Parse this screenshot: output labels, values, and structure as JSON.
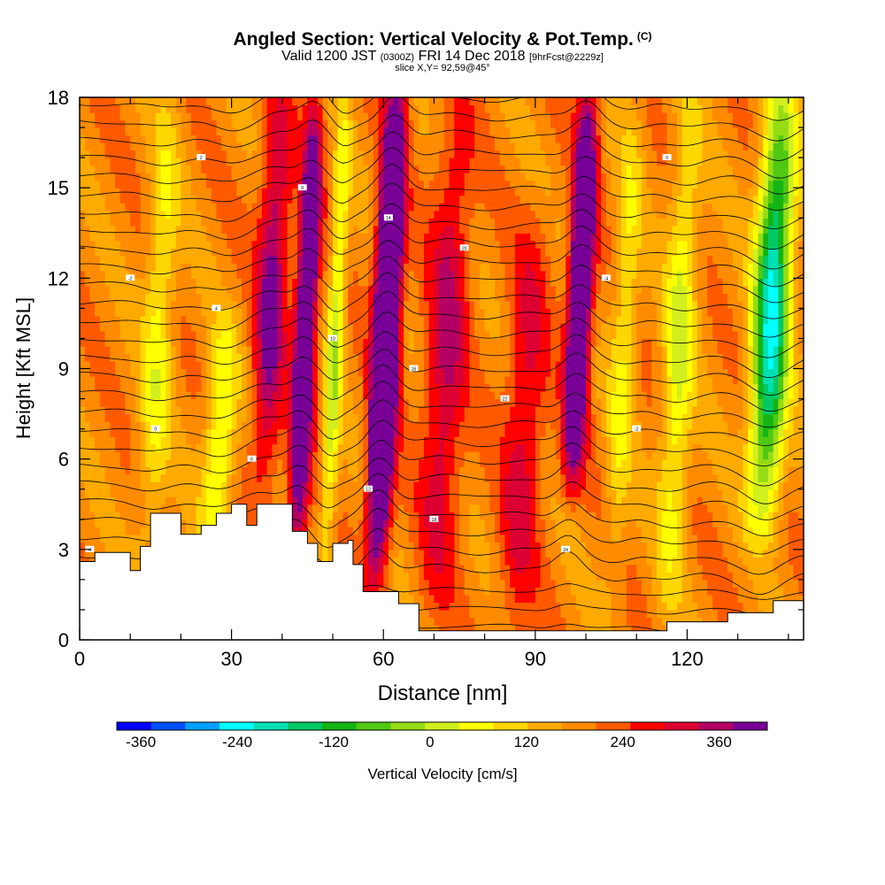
{
  "title": {
    "main": "Angled Section: Vertical Velocity & Pot.Temp.",
    "units_tag": "(C)",
    "valid_a": "Valid 1200 JST",
    "valid_utc": "(0300Z)",
    "valid_b": "FRI 14 Dec 2018",
    "forecast": "[9hrFcst@2229z]",
    "slice": "slice X,Y= 92,59@45°"
  },
  "chart_data": {
    "type": "heatmap",
    "xlabel": "Distance [nm]",
    "ylabel": "Height [Kft MSL]",
    "xlim": [
      0,
      143
    ],
    "ylim": [
      0,
      18
    ],
    "xticks": [
      0,
      30,
      60,
      90,
      120
    ],
    "yticks": [
      0,
      3,
      6,
      9,
      12,
      15,
      18
    ],
    "colorbar": {
      "label": "Vertical Velocity [cm/s]",
      "min": -390,
      "max": 420,
      "step": 30,
      "ticks": [
        -360,
        -240,
        -120,
        0,
        120,
        240,
        360
      ],
      "colors": [
        "#0000ff",
        "#0050ff",
        "#00a0ff",
        "#00ffff",
        "#00e0b4",
        "#00c864",
        "#14b414",
        "#50c814",
        "#96dc14",
        "#d2ef1e",
        "#ffff00",
        "#ffd700",
        "#ffaa00",
        "#ff8c00",
        "#ff5a00",
        "#ff0000",
        "#dc0032",
        "#b40064",
        "#780096"
      ]
    },
    "vv_features": [
      {
        "x": 60,
        "zmin": 2.5,
        "zmax": 18,
        "amp": 420,
        "width": 2.3,
        "note": "strong updraft core"
      },
      {
        "x": 44,
        "zmin": 2.5,
        "zmax": 18,
        "amp": 260,
        "width": 2.0,
        "note": "updraft"
      },
      {
        "x": 98,
        "zmin": 5.5,
        "zmax": 18,
        "amp": 300,
        "width": 2.2,
        "note": "updraft"
      },
      {
        "x": 37,
        "zmin": 5,
        "zmax": 18,
        "amp": 150,
        "width": 3.0,
        "note": "weak updraft"
      },
      {
        "x": 136,
        "zmin": 4,
        "zmax": 18,
        "amp": -290,
        "width": 3.5,
        "note": "downdraft"
      },
      {
        "x": 50,
        "zmin": 2,
        "zmax": 18,
        "amp": -130,
        "width": 1.6,
        "note": "downdraft"
      },
      {
        "x": 28,
        "zmin": 3,
        "zmax": 10,
        "amp": -120,
        "width": 3.0,
        "note": "downdraft"
      },
      {
        "x": 118,
        "zmin": 1,
        "zmax": 18,
        "amp": -110,
        "width": 3.0,
        "note": "downdraft"
      },
      {
        "x": 15,
        "zmin": 3,
        "zmax": 18,
        "amp": -90,
        "width": 3.0,
        "note": "downdraft"
      },
      {
        "x": 107,
        "zmin": 2,
        "zmax": 18,
        "amp": -80,
        "width": 2.5,
        "note": "downdraft"
      },
      {
        "x": 72,
        "zmin": 1,
        "zmax": 18,
        "amp": 110,
        "width": 4.0,
        "note": "weak updraft"
      },
      {
        "x": 88,
        "zmin": 0,
        "zmax": 14,
        "amp": 90,
        "width": 4.0,
        "note": "weak updraft"
      }
    ],
    "terrain": [
      [
        0,
        2.6
      ],
      [
        3,
        2.9
      ],
      [
        8,
        2.9
      ],
      [
        10,
        2.3
      ],
      [
        12,
        3.1
      ],
      [
        14,
        4.2
      ],
      [
        18,
        4.2
      ],
      [
        20,
        3.5
      ],
      [
        24,
        3.8
      ],
      [
        27,
        4.2
      ],
      [
        30,
        4.5
      ],
      [
        33,
        3.8
      ],
      [
        35,
        4.5
      ],
      [
        40,
        4.5
      ],
      [
        42,
        3.6
      ],
      [
        45,
        3.2
      ],
      [
        47,
        2.6
      ],
      [
        50,
        3.2
      ],
      [
        53,
        3.3
      ],
      [
        54,
        2.5
      ],
      [
        56,
        1.6
      ],
      [
        60,
        1.6
      ],
      [
        63,
        1.2
      ],
      [
        67,
        0.3
      ],
      [
        112,
        0.3
      ],
      [
        116,
        0.6
      ],
      [
        128,
        0.9
      ],
      [
        137,
        1.3
      ],
      [
        143,
        1.3
      ]
    ],
    "theta_labels": [
      "-4",
      "-2",
      "0",
      "2",
      "4",
      "6",
      "8",
      "10",
      "12",
      "14",
      "16",
      "18",
      "20",
      "22",
      "24"
    ]
  }
}
